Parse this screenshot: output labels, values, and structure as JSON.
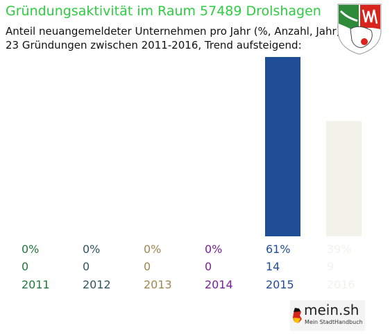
{
  "header": {
    "title": "Gründungsaktivität im Raum 57489 Drolshagen",
    "subtitle_line1": "Anteil neuangemeldeter Unternehmen pro Jahr (%, Anzahl, Jahr)",
    "subtitle_line2": "23 Gründungen zwischen 2011-2016, Trend aufsteigend:"
  },
  "crest": {
    "icon": "nrw-coat-of-arms-icon",
    "colors": {
      "green": "#2e8b3a",
      "red": "#d9231d",
      "white": "#ffffff"
    }
  },
  "chart_data": {
    "type": "bar",
    "categories": [
      "2011",
      "2012",
      "2013",
      "2014",
      "2015",
      "2016"
    ],
    "values": [
      0,
      0,
      0,
      0,
      14,
      9
    ],
    "percent_labels": [
      "0%",
      "0%",
      "0%",
      "0%",
      "61%",
      "39%"
    ],
    "count_labels": [
      "0",
      "0",
      "0",
      "0",
      "14",
      "9"
    ],
    "colors": [
      "#1f7a3a",
      "#2f5560",
      "#a08650",
      "#7a1f9a",
      "#1f4e96",
      "#f2f2ea"
    ],
    "ylim": [
      0,
      14
    ],
    "grid": false
  },
  "footer": {
    "logo_text": "mein.sh",
    "logo_sub": "Mein StadtHandbuch"
  }
}
